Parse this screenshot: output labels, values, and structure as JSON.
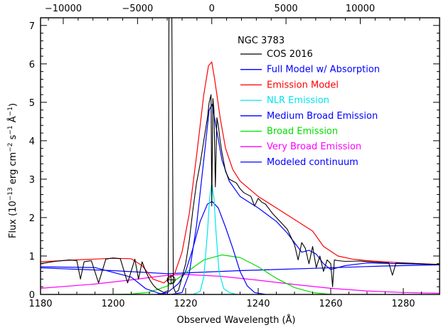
{
  "chart_data": {
    "type": "line",
    "title": "NGC 3783",
    "xlabel": "Observed Wavelength (Å)",
    "ylabel_parts": [
      "Flux (10",
      "−13",
      " erg cm",
      "−2",
      " s",
      "−1",
      " Å",
      "−1",
      ")"
    ],
    "xlim": [
      1180,
      1290
    ],
    "ylim": [
      0,
      7.2
    ],
    "x_ticks": [
      1180,
      1200,
      1220,
      1240,
      1260,
      1280
    ],
    "x_tick_labels": [
      "1180",
      "1200",
      "1220",
      "1240",
      "1260",
      "1280"
    ],
    "y_ticks": [
      0,
      1,
      2,
      3,
      4,
      5,
      6,
      7
    ],
    "y_tick_labels": [
      "0",
      "1",
      "2",
      "3",
      "4",
      "5",
      "6",
      "7"
    ],
    "top_axis": {
      "unit": "km/s",
      "rest_wavelength": 1227.2,
      "ticks": [
        -10000,
        -5000,
        0,
        5000,
        10000
      ],
      "tick_labels": [
        "−10000",
        "−5000",
        "0",
        "5000",
        "10000"
      ]
    },
    "geocoronal_marker": {
      "x": 1216.0,
      "y": 0.38
    },
    "legend": [
      {
        "label": "COS 2016",
        "color": "#000000"
      },
      {
        "label": "Full Model w/ Absorption",
        "color": "#0000ff"
      },
      {
        "label": "Emission Model",
        "color": "#ff0000"
      },
      {
        "label": "NLR Emission",
        "color": "#00e5ee"
      },
      {
        "label": "Medium Broad Emission",
        "color": "#0000ff"
      },
      {
        "label": "Broad Emission",
        "color": "#00dd00"
      },
      {
        "label": "Very Broad Emission",
        "color": "#ff00ff"
      },
      {
        "label": "Modeled continuum",
        "color": "#0000ff"
      }
    ],
    "series": [
      {
        "name": "Modeled continuum",
        "color": "#0000ff",
        "x": [
          1180,
          1200,
          1215,
          1235,
          1255,
          1275,
          1290
        ],
        "y": [
          0.69,
          0.62,
          0.54,
          0.62,
          0.68,
          0.74,
          0.77
        ]
      },
      {
        "name": "Very Broad Emission",
        "color": "#ff00ff",
        "x": [
          1180,
          1195,
          1205,
          1215,
          1220,
          1230,
          1240,
          1250,
          1260,
          1270,
          1280,
          1290
        ],
        "y": [
          0.16,
          0.27,
          0.38,
          0.5,
          0.52,
          0.47,
          0.37,
          0.26,
          0.16,
          0.09,
          0.05,
          0.03
        ]
      },
      {
        "name": "Broad Emission",
        "color": "#00dd00",
        "x": [
          1200,
          1205,
          1210,
          1215,
          1220,
          1225,
          1230,
          1235,
          1240,
          1245,
          1250,
          1255,
          1260
        ],
        "y": [
          0.0,
          0.01,
          0.06,
          0.22,
          0.56,
          0.9,
          1.03,
          0.96,
          0.72,
          0.42,
          0.18,
          0.05,
          0.0
        ]
      },
      {
        "name": "Medium Broad Emission",
        "color": "#0000ff",
        "x": [
          1212,
          1215,
          1218,
          1220,
          1222,
          1224,
          1226,
          1227.3,
          1229,
          1231,
          1233,
          1235,
          1237,
          1239,
          1242
        ],
        "y": [
          0.0,
          0.05,
          0.28,
          0.6,
          1.2,
          1.9,
          2.35,
          2.42,
          2.25,
          1.75,
          1.2,
          0.6,
          0.22,
          0.05,
          0.0
        ]
      },
      {
        "name": "NLR Emission",
        "color": "#00e5ee",
        "x": [
          1222,
          1224,
          1225,
          1226,
          1226.6,
          1227.2,
          1227.8,
          1228.4,
          1229.2,
          1230.5,
          1232,
          1234
        ],
        "y": [
          0.0,
          0.08,
          0.45,
          1.6,
          2.5,
          2.9,
          2.5,
          1.6,
          0.6,
          0.15,
          0.05,
          0.0
        ]
      },
      {
        "name": "Emission Model",
        "color": "#ff0000",
        "x": [
          1180,
          1190,
          1200,
          1205,
          1208,
          1211,
          1214,
          1217,
          1219,
          1221,
          1223,
          1225,
          1226.3,
          1227.2,
          1228,
          1229.5,
          1231,
          1233,
          1235,
          1240,
          1245,
          1250,
          1255,
          1258,
          1262,
          1266,
          1270,
          1280,
          1290
        ],
        "y": [
          0.85,
          0.9,
          0.94,
          0.93,
          0.75,
          0.4,
          0.3,
          0.55,
          1.1,
          2.1,
          3.6,
          5.2,
          5.95,
          6.05,
          5.6,
          4.6,
          3.8,
          3.25,
          2.95,
          2.55,
          2.25,
          1.95,
          1.65,
          1.25,
          1.0,
          0.92,
          0.88,
          0.82,
          0.78
        ]
      },
      {
        "name": "Full Model w/ Absorption",
        "color": "#0000ff",
        "x": [
          1180,
          1195,
          1205,
          1209,
          1213,
          1216,
          1219,
          1221,
          1223,
          1225,
          1226.5,
          1227.3,
          1228.5,
          1230,
          1232,
          1235,
          1240,
          1245,
          1248,
          1250,
          1252,
          1254,
          1256,
          1258,
          1260,
          1264,
          1270,
          1280,
          1290
        ],
        "y": [
          0.72,
          0.7,
          0.45,
          0.15,
          0.02,
          0.0,
          0.05,
          0.55,
          1.8,
          3.5,
          4.8,
          4.95,
          4.3,
          3.5,
          2.95,
          2.55,
          2.25,
          1.9,
          1.6,
          1.35,
          1.1,
          1.15,
          1.05,
          0.8,
          0.65,
          0.75,
          0.82,
          0.8,
          0.78
        ]
      },
      {
        "name": "COS 2016",
        "color": "#000000",
        "x": [
          1180,
          1184,
          1188,
          1190,
          1191,
          1192,
          1194,
          1196,
          1198,
          1200,
          1202,
          1204,
          1206,
          1207,
          1208,
          1209,
          1210,
          1211,
          1212,
          1213,
          1214,
          1215.2,
          1215.4,
          1215.8,
          1216.2,
          1216.6,
          1217.2,
          1218,
          1219,
          1220,
          1221,
          1222,
          1223,
          1224,
          1225,
          1226,
          1226.5,
          1227.0,
          1227.2,
          1227.5,
          1227.8,
          1228.2,
          1228.6,
          1229,
          1229.5,
          1230,
          1231,
          1232,
          1233,
          1234,
          1235,
          1236,
          1238,
          1239,
          1240,
          1241,
          1242,
          1244,
          1246,
          1248,
          1249,
          1250,
          1251,
          1252,
          1253,
          1254,
          1255,
          1256,
          1257,
          1258,
          1259,
          1260,
          1260.5,
          1261,
          1262,
          1264,
          1268,
          1272,
          1276,
          1277,
          1278,
          1282,
          1286,
          1290
        ],
        "y": [
          0.8,
          0.86,
          0.9,
          0.88,
          0.4,
          0.85,
          0.88,
          0.3,
          0.92,
          0.95,
          0.93,
          0.3,
          0.92,
          0.4,
          0.85,
          0.6,
          0.4,
          0.25,
          0.15,
          0.1,
          0.05,
          0.1,
          7.2,
          7.2,
          7.2,
          0.2,
          0.05,
          0.1,
          0.45,
          0.8,
          1.4,
          2.2,
          2.9,
          3.4,
          4.0,
          4.6,
          5.0,
          5.2,
          2.3,
          5.1,
          4.8,
          2.8,
          4.6,
          4.4,
          4.0,
          3.7,
          3.2,
          3.0,
          2.95,
          2.9,
          2.75,
          2.65,
          2.55,
          2.3,
          2.5,
          2.4,
          2.35,
          2.1,
          1.9,
          1.7,
          1.5,
          1.3,
          0.9,
          1.35,
          1.2,
          0.8,
          1.25,
          0.7,
          1.0,
          0.6,
          0.9,
          0.8,
          0.2,
          0.9,
          0.88,
          0.86,
          0.87,
          0.84,
          0.82,
          0.5,
          0.82,
          0.81,
          0.79,
          0.78
        ]
      }
    ]
  }
}
